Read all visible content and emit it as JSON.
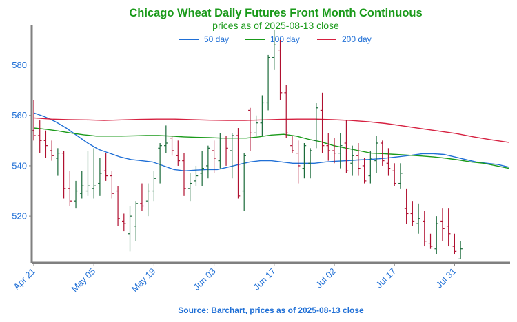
{
  "colors": {
    "title": "#1a9a1a",
    "axis": "#808080",
    "tick_text": "#1f6fd6",
    "ma50": "#1f6fd6",
    "ma100": "#1a9a1a",
    "ma200": "#d62040",
    "bar_up": "#1a6b3a",
    "bar_down": "#b01030",
    "source": "#1f6fd6"
  },
  "chart_data": {
    "type": "ohlc",
    "title": "Chicago Wheat Daily Futures Front Month Continuous",
    "subtitle": "prices as of 2025-08-13 close",
    "source": "Source: Barchart, prices as of 2025-08-13 close",
    "xlabel": "",
    "ylabel": "",
    "ylim": [
      502,
      596
    ],
    "yticks": [
      520,
      540,
      560,
      580
    ],
    "xticks": [
      {
        "index": 0,
        "label": "Apr 21"
      },
      {
        "index": 10,
        "label": "May 05"
      },
      {
        "index": 20,
        "label": "May 19"
      },
      {
        "index": 30,
        "label": "Jun 03"
      },
      {
        "index": 40,
        "label": "Jun 17"
      },
      {
        "index": 50,
        "label": "Jul 02"
      },
      {
        "index": 60,
        "label": "Jul 17"
      },
      {
        "index": 70,
        "label": "Jul 31"
      }
    ],
    "legend": {
      "position": "top-center",
      "items": [
        {
          "label": "50 day",
          "color_key": "ma50"
        },
        {
          "label": "100 day",
          "color_key": "ma100"
        },
        {
          "label": "200 day",
          "color_key": "ma200"
        }
      ]
    },
    "grid": false,
    "ohlc": [
      [
        554,
        566,
        550,
        552
      ],
      [
        552,
        558,
        545,
        550
      ],
      [
        550,
        554,
        543,
        548
      ],
      [
        546,
        550,
        542,
        544
      ],
      [
        543,
        547,
        536,
        545
      ],
      [
        545,
        546,
        527,
        531
      ],
      [
        531,
        538,
        524,
        526
      ],
      [
        526,
        534,
        523,
        530
      ],
      [
        529,
        538,
        527,
        532
      ],
      [
        530,
        546,
        528,
        532
      ],
      [
        531,
        547,
        527,
        532
      ],
      [
        533,
        543,
        528,
        537
      ],
      [
        538,
        545,
        534,
        536
      ],
      [
        536,
        538,
        527,
        529
      ],
      [
        530,
        532,
        516,
        519
      ],
      [
        518,
        521,
        514,
        517
      ],
      [
        513,
        524,
        506,
        520
      ],
      [
        516,
        526,
        510,
        525
      ],
      [
        525,
        533,
        522,
        524
      ],
      [
        526,
        533,
        520,
        530
      ],
      [
        530,
        538,
        526,
        535
      ],
      [
        547,
        549,
        533,
        548
      ],
      [
        548,
        556,
        545,
        549
      ],
      [
        551,
        552,
        544,
        546
      ],
      [
        544,
        550,
        540,
        542
      ],
      [
        542,
        545,
        528,
        531
      ],
      [
        531,
        537,
        526,
        533
      ],
      [
        534,
        540,
        532,
        536
      ],
      [
        537,
        546,
        532,
        539
      ],
      [
        540,
        548,
        535,
        547
      ],
      [
        546,
        550,
        537,
        543
      ],
      [
        542,
        553,
        539,
        551
      ],
      [
        551,
        552,
        540,
        547
      ],
      [
        546,
        553,
        535,
        552
      ],
      [
        552,
        555,
        527,
        528
      ],
      [
        530,
        545,
        522,
        544
      ],
      [
        562,
        563,
        546,
        553
      ],
      [
        553,
        560,
        552,
        557
      ],
      [
        557,
        568,
        552,
        565
      ],
      [
        565,
        584,
        562,
        583
      ],
      [
        583,
        594,
        578,
        588
      ],
      [
        586,
        590,
        566,
        569
      ],
      [
        569,
        572,
        551,
        553
      ],
      [
        548,
        552,
        545,
        546
      ],
      [
        545,
        550,
        533,
        540
      ],
      [
        539,
        549,
        535,
        548
      ],
      [
        541,
        547,
        535,
        546
      ],
      [
        550,
        565,
        547,
        563
      ],
      [
        562,
        569,
        545,
        548
      ],
      [
        548,
        553,
        542,
        546
      ],
      [
        546,
        551,
        541,
        545
      ],
      [
        545,
        553,
        539,
        548
      ],
      [
        549,
        558,
        537,
        538
      ],
      [
        541,
        548,
        536,
        544
      ],
      [
        544,
        549,
        536,
        539
      ],
      [
        540,
        543,
        533,
        534
      ],
      [
        536,
        546,
        533,
        543
      ],
      [
        542,
        552,
        537,
        549
      ],
      [
        549,
        550,
        540,
        542
      ],
      [
        541,
        547,
        536,
        539
      ],
      [
        538,
        541,
        532,
        533
      ],
      [
        533,
        541,
        531,
        537
      ],
      [
        523,
        531,
        517,
        521
      ],
      [
        521,
        526,
        516,
        518
      ],
      [
        517,
        525,
        513,
        519
      ],
      [
        518,
        522,
        508,
        510
      ],
      [
        509,
        513,
        507,
        508
      ],
      [
        507,
        520,
        505,
        517
      ],
      [
        518,
        523,
        510,
        515
      ],
      [
        516,
        523,
        508,
        513
      ],
      [
        508,
        513,
        505,
        506
      ],
      [
        503,
        510,
        503,
        507
      ]
    ],
    "series": [
      {
        "name": "50 day",
        "color_key": "ma50",
        "values": [
          561,
          559.5,
          557.5,
          555,
          552,
          549,
          546.5,
          545,
          543.5,
          542.5,
          542,
          541.5,
          540,
          538.5,
          538,
          538.3,
          538.5,
          538.5,
          539.5,
          540.5,
          541.5,
          542,
          542,
          541.5,
          541,
          541,
          541,
          541.5,
          541.8,
          542,
          542.3,
          542.5,
          542.8,
          543.2,
          543.7,
          544.2,
          544.8,
          544.8,
          544.5,
          543.5,
          542.5,
          541.5,
          541,
          540.5,
          539.5
        ]
      },
      {
        "name": "100 day",
        "color_key": "ma100",
        "values": [
          555,
          554.5,
          553.8,
          553,
          552.3,
          551.8,
          551.8,
          551.8,
          551.9,
          552,
          552,
          551.8,
          551.5,
          551.3,
          551.2,
          551,
          551,
          551,
          551.5,
          552.2,
          552.5,
          551.8,
          550.5,
          549.5,
          548,
          547,
          546,
          545,
          544.8,
          544.5,
          544.2,
          543.9,
          543.5,
          543,
          542.3,
          541.5,
          541,
          540,
          539
        ]
      },
      {
        "name": "200 day",
        "color_key": "ma200",
        "values": [
          559,
          558.5,
          558.3,
          558.2,
          558,
          558.2,
          558.4,
          558.5,
          558.5,
          558.3,
          558.1,
          558,
          558,
          558.2,
          558.4,
          558.5,
          558.5,
          558.3,
          558,
          557.5,
          556.8,
          555.8,
          554.8,
          553.8,
          552.8,
          551.5,
          550.3,
          549.3
        ]
      }
    ]
  }
}
